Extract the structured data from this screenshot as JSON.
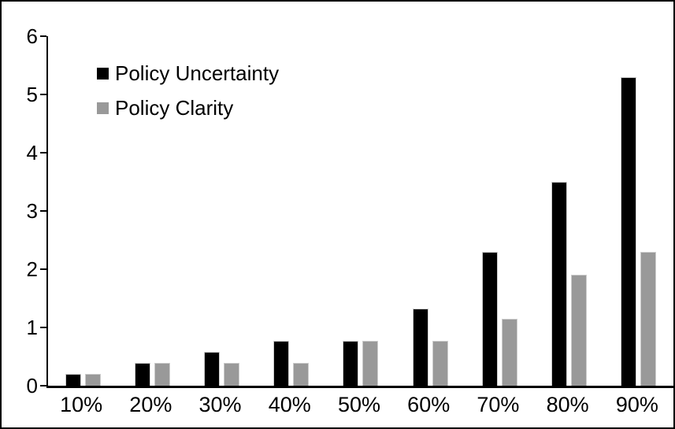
{
  "chart_data": {
    "type": "bar",
    "title": "",
    "xlabel": "",
    "ylabel": "",
    "categories": [
      "10%",
      "20%",
      "30%",
      "40%",
      "50%",
      "60%",
      "70%",
      "80%",
      "90%"
    ],
    "series": [
      {
        "name": "Policy Uncertainty",
        "color": "#000000",
        "values": [
          0.2,
          0.39,
          0.58,
          0.77,
          0.77,
          1.33,
          2.3,
          3.5,
          5.3
        ]
      },
      {
        "name": "Policy Clarity",
        "color": "#999999",
        "values": [
          0.2,
          0.39,
          0.39,
          0.39,
          0.77,
          0.77,
          1.15,
          1.9,
          2.3
        ]
      }
    ],
    "ylim": [
      0,
      6
    ],
    "yticks": [
      0,
      1,
      2,
      3,
      4,
      5,
      6
    ],
    "grid": false,
    "legend_position": "inside-top-left"
  },
  "colors": {
    "frame_border": "#000000",
    "bar_border": "#cccccc"
  }
}
